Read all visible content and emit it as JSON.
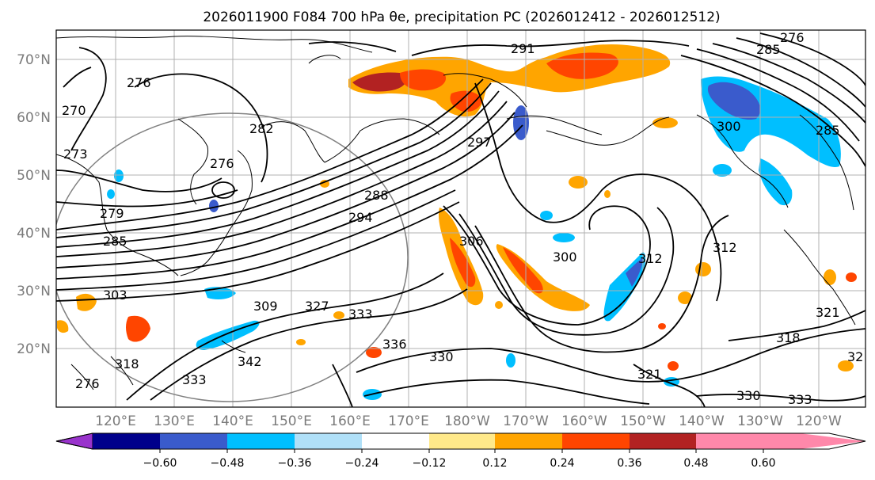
{
  "title": "2026011900 F084 700 hPa θe, precipitation PC (2026012412 - 2026012512)",
  "map": {
    "lat_labels": [
      "70°N",
      "60°N",
      "50°N",
      "40°N",
      "30°N",
      "20°N"
    ],
    "lon_labels": [
      "120°E",
      "130°E",
      "140°E",
      "150°E",
      "160°E",
      "170°E",
      "180°W",
      "170°W",
      "160°W",
      "150°W",
      "140°W",
      "130°W",
      "120°W"
    ],
    "contour_labels": [
      {
        "text": "291"
      },
      {
        "text": "276"
      },
      {
        "text": "270"
      },
      {
        "text": "285"
      },
      {
        "text": "276"
      },
      {
        "text": "282"
      },
      {
        "text": "273"
      },
      {
        "text": "276"
      },
      {
        "text": "279"
      },
      {
        "text": "288"
      },
      {
        "text": "294"
      },
      {
        "text": "297"
      },
      {
        "text": "285"
      },
      {
        "text": "303"
      },
      {
        "text": "309"
      },
      {
        "text": "327"
      },
      {
        "text": "333"
      },
      {
        "text": "336"
      },
      {
        "text": "330"
      },
      {
        "text": "342"
      },
      {
        "text": "333"
      },
      {
        "text": "318"
      },
      {
        "text": "306"
      },
      {
        "text": "300"
      },
      {
        "text": "312"
      },
      {
        "text": "312"
      },
      {
        "text": "321"
      },
      {
        "text": "318"
      },
      {
        "text": "321"
      },
      {
        "text": "330"
      },
      {
        "text": "333"
      },
      {
        "text": "32"
      },
      {
        "text": "285"
      },
      {
        "text": "276"
      },
      {
        "text": "300"
      }
    ]
  },
  "colorbar": {
    "ticks": [
      "−0.60",
      "−0.48",
      "−0.36",
      "−0.24",
      "−0.12",
      "0.12",
      "0.24",
      "0.36",
      "0.48",
      "0.60"
    ],
    "colors": [
      "#9933cc",
      "#00008b",
      "#3a5bcc",
      "#00bfff",
      "#b0e0f8",
      "#ffffff",
      "#ffe98a",
      "#ffa500",
      "#ff4500",
      "#b22222",
      "#ff88aa"
    ]
  }
}
